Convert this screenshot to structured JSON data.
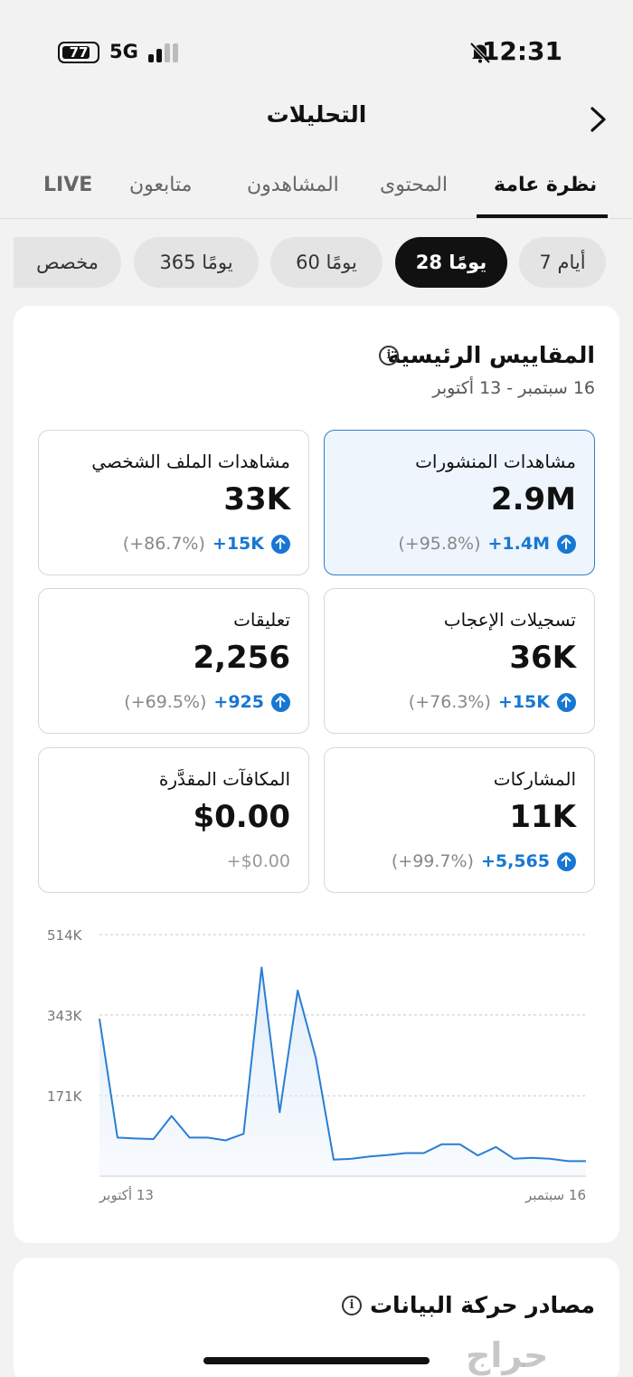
{
  "status_bar": {
    "battery": "77",
    "network": "5G",
    "time": "12:31"
  },
  "header": {
    "title": "التحليلات"
  },
  "tabs": [
    {
      "label": "نظرة عامة",
      "active": true
    },
    {
      "label": "المحتوى",
      "active": false
    },
    {
      "label": "المشاهدون",
      "active": false
    },
    {
      "label": "متابعون",
      "active": false
    },
    {
      "label": "LIVE",
      "active": false
    }
  ],
  "ranges": [
    {
      "label": "7 أيام",
      "active": false
    },
    {
      "label": "28 يومًا",
      "active": true
    },
    {
      "label": "60 يومًا",
      "active": false
    },
    {
      "label": "365 يومًا",
      "active": false
    },
    {
      "label": "مخصص",
      "active": false
    }
  ],
  "key_metrics": {
    "title": "المقاييس الرئيسية",
    "date_range": "16 سبتمبر - 13 أكتوبر",
    "items": [
      {
        "label": "مشاهدات المنشورات",
        "value": "2.9M",
        "delta": "+1.4M",
        "pct": "(+95.8%)"
      },
      {
        "label": "مشاهدات الملف الشخصي",
        "value": "33K",
        "delta": "+15K",
        "pct": "(+86.7%)"
      },
      {
        "label": "تسجيلات الإعجاب",
        "value": "36K",
        "delta": "+15K",
        "pct": "(+76.3%)"
      },
      {
        "label": "تعليقات",
        "value": "2,256",
        "delta": "+925",
        "pct": "(+69.5%)"
      },
      {
        "label": "المشاركات",
        "value": "11K",
        "delta": "+5,565",
        "pct": "(+99.7%)"
      },
      {
        "label": "المكافآت المقدَّرة",
        "value": "$0.00",
        "delta": "",
        "pct": "+$0.00"
      }
    ]
  },
  "chart_data": {
    "type": "area",
    "y_ticks": [
      "514K",
      "343K",
      "171K"
    ],
    "ylim": [
      0,
      514000
    ],
    "x_labels": {
      "left": "13 أكتوبر",
      "right": "16 سبتمبر"
    },
    "values_left_to_right": [
      335000,
      82000,
      80000,
      79000,
      128000,
      82000,
      82000,
      76000,
      90000,
      444000,
      136000,
      395000,
      253000,
      35000,
      37000,
      42000,
      45000,
      49000,
      49000,
      68000,
      68000,
      44000,
      62000,
      37000,
      39000,
      37000,
      32000,
      32000
    ],
    "line_color": "#2a7ed3",
    "fill_color": "#e3eefa"
  },
  "traffic_sources": {
    "title": "مصادر حركة البيانات"
  },
  "watermark": "حراج"
}
